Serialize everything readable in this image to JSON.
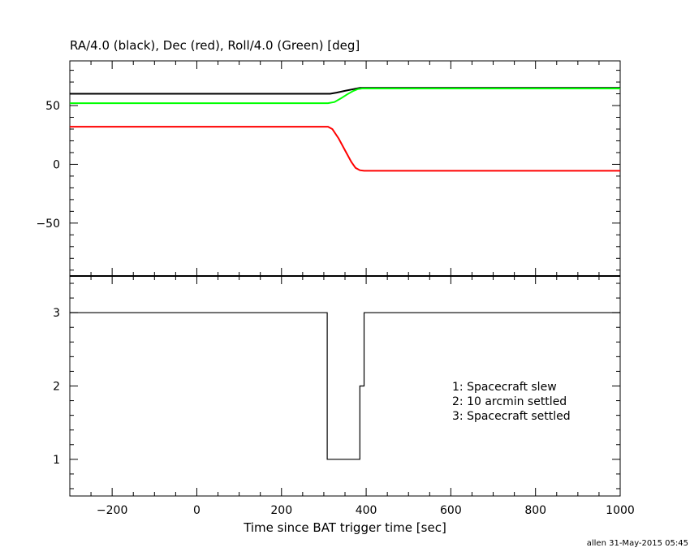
{
  "chart_data": [
    {
      "type": "line",
      "title": "RA/4.0 (black), Dec (red), Roll/4.0 (Green) [deg]",
      "xlim": [
        -300,
        1000
      ],
      "ylim": [
        -95,
        88
      ],
      "y_ticks": [
        -50,
        0,
        50
      ],
      "y_tick_labels": [
        "−50",
        "0",
        "50"
      ],
      "series": [
        {
          "color": "#000000",
          "x": [
            -300,
            310,
            315,
            330,
            350,
            370,
            385,
            1000
          ],
          "y": [
            60,
            60,
            60,
            61,
            62.5,
            64,
            65,
            65
          ]
        },
        {
          "color": "#ff0000",
          "x": [
            -300,
            310,
            320,
            335,
            350,
            365,
            375,
            385,
            395,
            1000
          ],
          "y": [
            32,
            32,
            30,
            22,
            12,
            2,
            -3,
            -5,
            -5.5,
            -5.5
          ]
        },
        {
          "color": "#00ff00",
          "x": [
            -300,
            310,
            325,
            340,
            355,
            370,
            380,
            390,
            1000
          ],
          "y": [
            52,
            52,
            53,
            56,
            59.5,
            62.5,
            64,
            64.5,
            64.5
          ]
        }
      ]
    },
    {
      "type": "line",
      "xlabel": "Time since BAT trigger time [sec]",
      "xlim": [
        -300,
        1000
      ],
      "ylim": [
        0.5,
        3.5
      ],
      "x_ticks": [
        -200,
        0,
        200,
        400,
        600,
        800,
        1000
      ],
      "x_tick_labels": [
        "−200",
        "0",
        "200",
        "400",
        "600",
        "800",
        "1000"
      ],
      "y_ticks": [
        1,
        2,
        3
      ],
      "y_tick_labels": [
        "1",
        "2",
        "3"
      ],
      "series": [
        {
          "color": "#000000",
          "x": [
            -300,
            308,
            308,
            385,
            385,
            395,
            395,
            1000
          ],
          "y": [
            3,
            3,
            1,
            1,
            2,
            2,
            3,
            3
          ]
        }
      ],
      "annotations": [
        "1: Spacecraft slew",
        "2: 10 arcmin settled",
        "3: Spacecraft settled"
      ]
    }
  ],
  "footer": "allen 31-May-2015 05:45"
}
